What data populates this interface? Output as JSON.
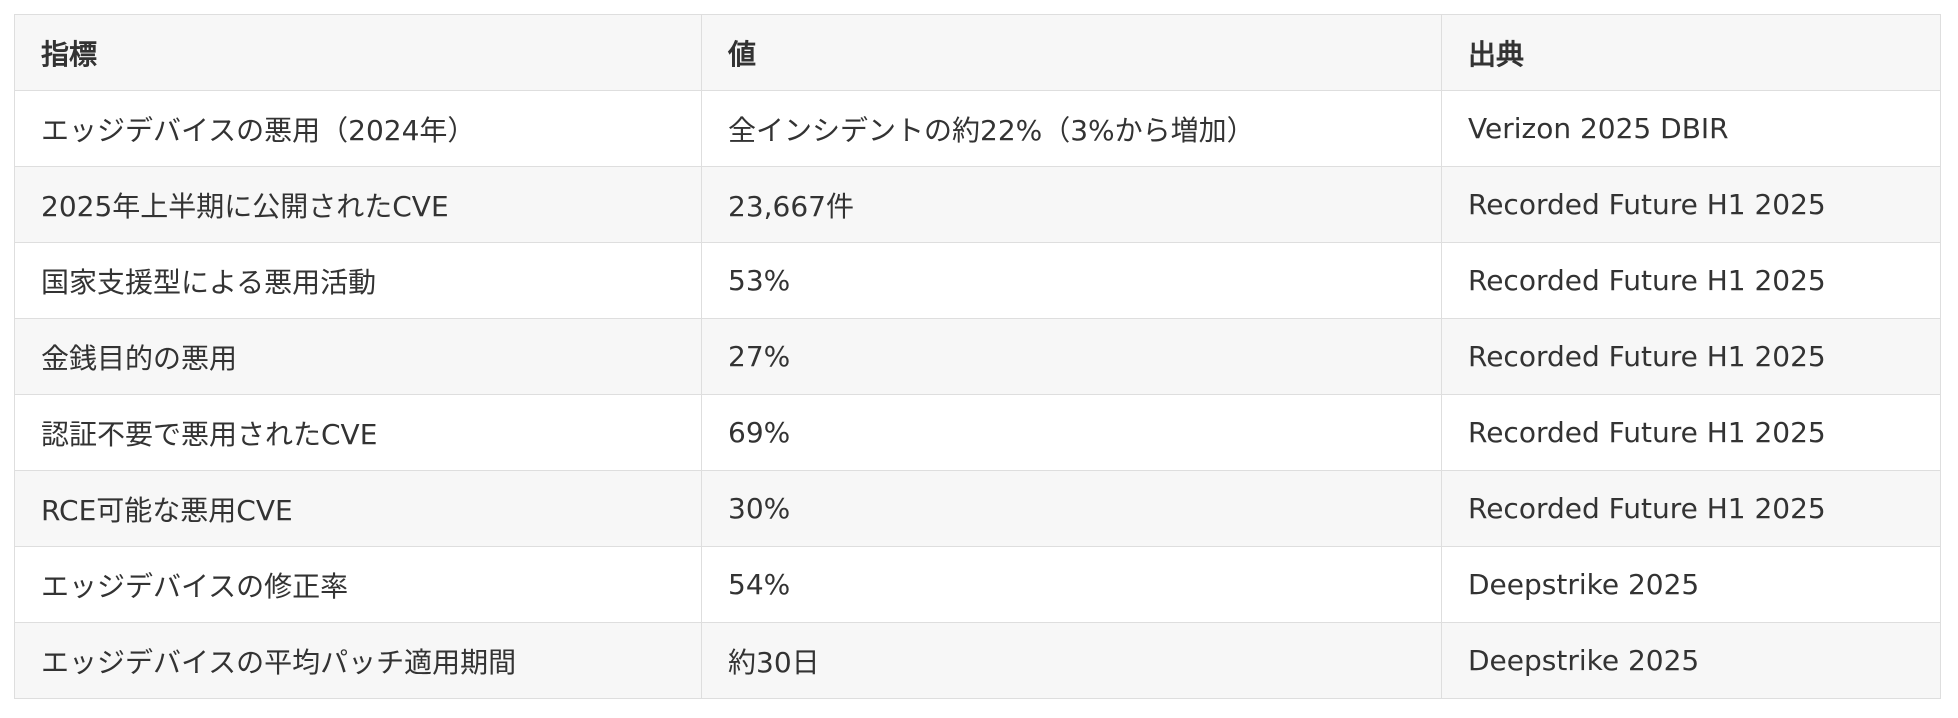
{
  "table": {
    "headers": [
      "指標",
      "値",
      "出典"
    ],
    "rows": [
      [
        "エッジデバイスの悪用（2024年）",
        "全インシデントの約22%（3%から増加）",
        "Verizon 2025 DBIR"
      ],
      [
        "2025年上半期に公開されたCVE",
        "23,667件",
        "Recorded Future H1 2025"
      ],
      [
        "国家支援型による悪用活動",
        "53%",
        "Recorded Future H1 2025"
      ],
      [
        "金銭目的の悪用",
        "27%",
        "Recorded Future H1 2025"
      ],
      [
        "認証不要で悪用されたCVE",
        "69%",
        "Recorded Future H1 2025"
      ],
      [
        "RCE可能な悪用CVE",
        "30%",
        "Recorded Future H1 2025"
      ],
      [
        "エッジデバイスの修正率",
        "54%",
        "Deepstrike 2025"
      ],
      [
        "エッジデバイスの平均パッチ適用期間",
        "約30日",
        "Deepstrike 2025"
      ]
    ]
  }
}
